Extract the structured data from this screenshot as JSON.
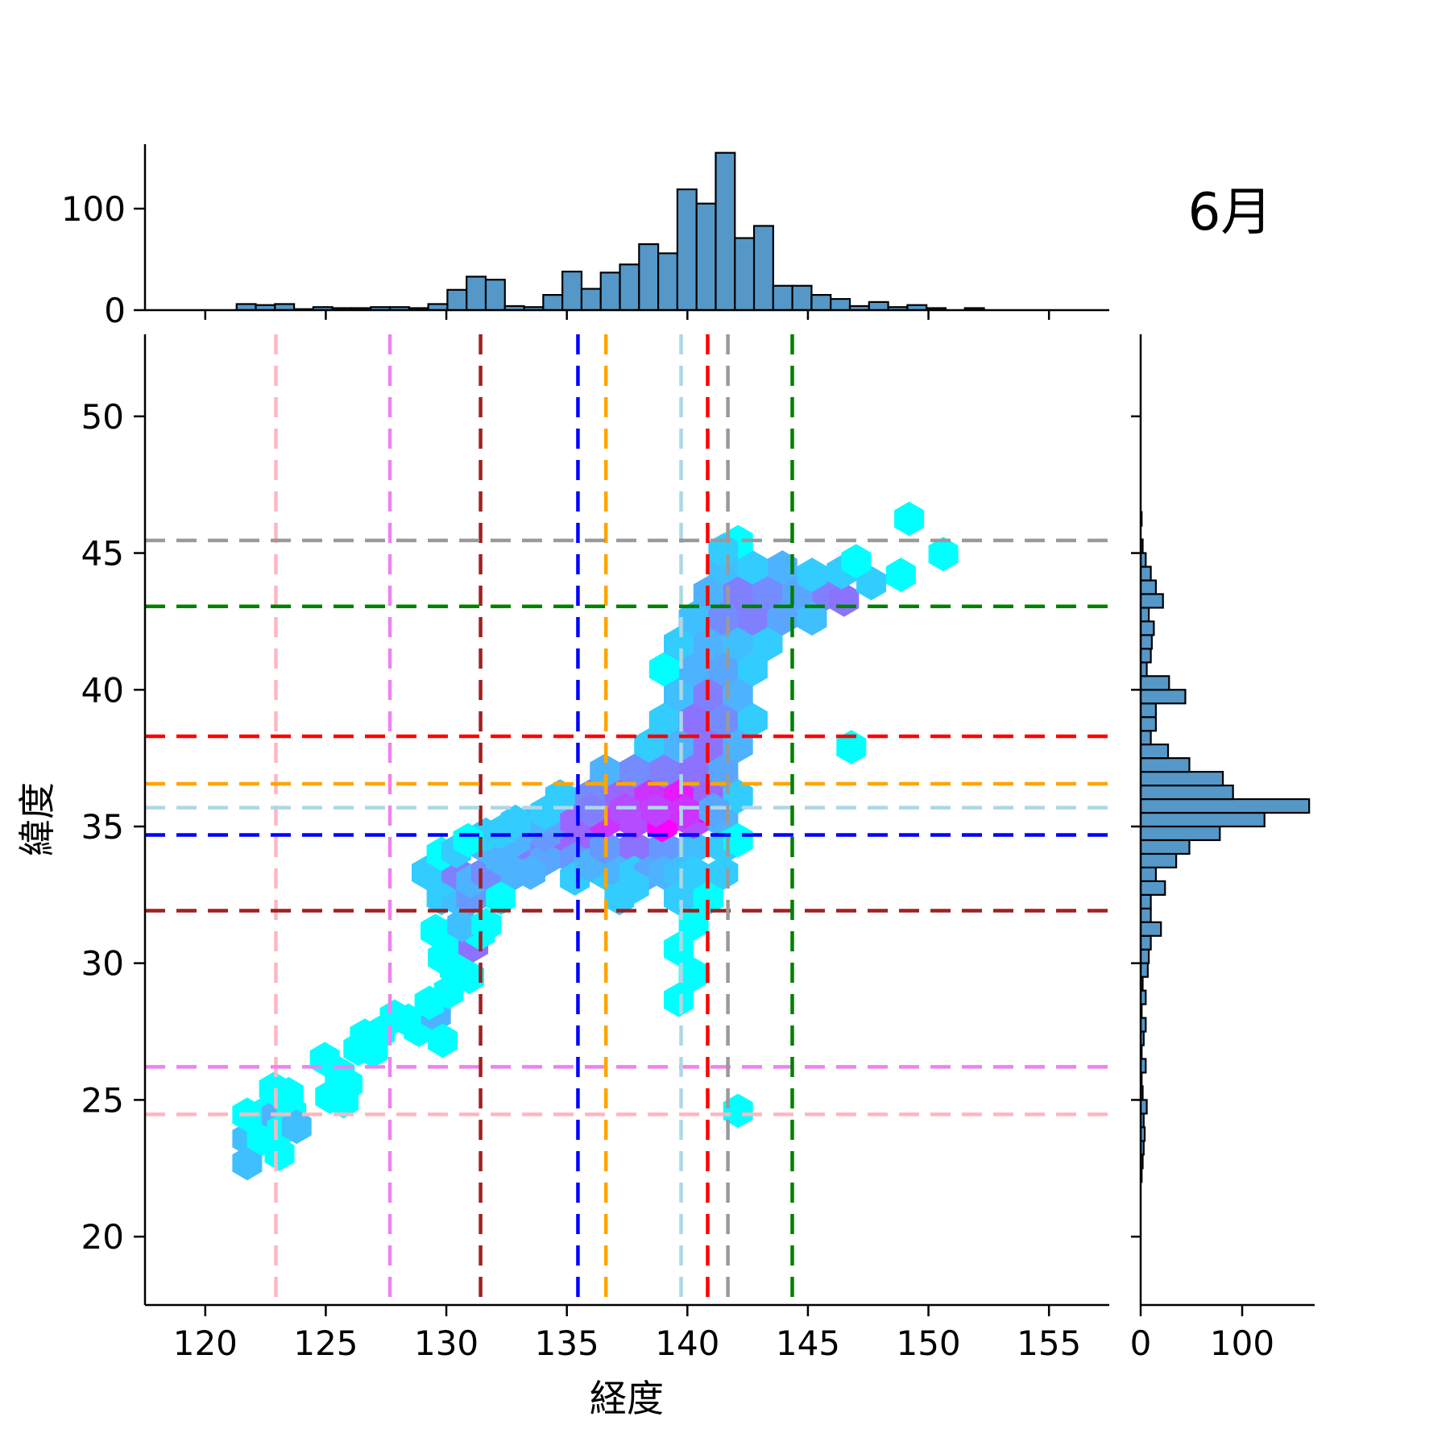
{
  "chart_data": {
    "type": "hexbin_jointplot",
    "title": "6月",
    "xlabel": "経度",
    "ylabel": "緯度",
    "xlim": [
      117.5,
      157.5
    ],
    "ylim": [
      17.5,
      53.0
    ],
    "xticks": [
      120,
      125,
      130,
      135,
      140,
      145,
      150,
      155
    ],
    "yticks": [
      20,
      25,
      30,
      35,
      40,
      45,
      50
    ],
    "grid": false,
    "colormap": "cool",
    "hist_bar_color": "#5598C8",
    "hist_bar_edge": "#000000",
    "top_histogram": {
      "axis": "longitude",
      "bin_start": 121.3,
      "bin_width": 0.795,
      "yticks": [
        0,
        100
      ],
      "ymax": 163,
      "values": [
        6,
        5,
        6,
        1,
        3,
        2,
        2,
        3,
        3,
        2,
        6,
        20,
        33,
        30,
        4,
        3,
        15,
        38,
        21,
        37,
        45,
        65,
        56,
        119,
        105,
        155,
        71,
        83,
        24,
        24,
        15,
        11,
        4,
        8,
        3,
        5,
        2,
        0,
        2
      ]
    },
    "right_histogram": {
      "axis": "latitude",
      "bin_start": 22.0,
      "bin_width": 0.5,
      "xticks": [
        0,
        100
      ],
      "xmax": 170,
      "values": [
        1,
        2,
        3,
        4,
        3,
        6,
        2,
        1,
        5,
        1,
        3,
        5,
        1,
        5,
        2,
        7,
        8,
        10,
        20,
        10,
        10,
        24,
        15,
        35,
        48,
        78,
        122,
        166,
        91,
        81,
        48,
        27,
        10,
        15,
        15,
        44,
        28,
        6,
        10,
        11,
        13,
        8,
        22,
        15,
        10,
        5,
        2,
        0,
        1
      ]
    },
    "reference_lines": [
      {
        "name": "pink",
        "color": "#FFB6C1",
        "lon": 122.93,
        "lat": 24.47
      },
      {
        "name": "violet",
        "color": "#EE82EE",
        "lon": 127.66,
        "lat": 26.21
      },
      {
        "name": "darkred",
        "color": "#A02020",
        "lon": 131.42,
        "lat": 31.92
      },
      {
        "name": "blue",
        "color": "#0000FF",
        "lon": 135.46,
        "lat": 34.69
      },
      {
        "name": "orange",
        "color": "#FFA500",
        "lon": 136.62,
        "lat": 36.56
      },
      {
        "name": "lightblue",
        "color": "#ADD8E6",
        "lon": 139.74,
        "lat": 35.69
      },
      {
        "name": "red",
        "color": "#FF0000",
        "lon": 140.84,
        "lat": 38.3
      },
      {
        "name": "gray",
        "color": "#9A9A9A",
        "lon": 141.68,
        "lat": 45.46
      },
      {
        "name": "green",
        "color": "#008000",
        "lon": 144.35,
        "lat": 43.05
      }
    ],
    "hex_points": [
      [
        121.74,
        22.69,
        0.25
      ],
      [
        121.74,
        23.58,
        0.25
      ],
      [
        122.35,
        23.58,
        0
      ],
      [
        123.08,
        23.03,
        0
      ],
      [
        121.74,
        24.46,
        0
      ],
      [
        122.35,
        24.46,
        0
      ],
      [
        122.96,
        24.43,
        0.3
      ],
      [
        123.57,
        24.55,
        0
      ],
      [
        123.18,
        23.91,
        0
      ],
      [
        123.79,
        24.02,
        0.25
      ],
      [
        122.85,
        25.4,
        0
      ],
      [
        123.46,
        25.21,
        0
      ],
      [
        124.96,
        26.49,
        0
      ],
      [
        125.58,
        25.96,
        0
      ],
      [
        125.9,
        25.58,
        0
      ],
      [
        125.18,
        25.12,
        0
      ],
      [
        125.74,
        24.95,
        0
      ],
      [
        126.35,
        26.87,
        0
      ],
      [
        126.96,
        26.8,
        0
      ],
      [
        127.25,
        27.46,
        0
      ],
      [
        126.62,
        27.35,
        0
      ],
      [
        127.86,
        28.05,
        0
      ],
      [
        128.43,
        27.9,
        0
      ],
      [
        128.86,
        27.56,
        0
      ],
      [
        129.57,
        28.11,
        0.3
      ],
      [
        129.3,
        28.55,
        0
      ],
      [
        129.85,
        27.17,
        0
      ],
      [
        130.1,
        28.95,
        0
      ],
      [
        129.55,
        31.18,
        0
      ],
      [
        130.05,
        31.0,
        0
      ],
      [
        130.55,
        30.7,
        0
      ],
      [
        129.85,
        30.2,
        0
      ],
      [
        130.35,
        29.8,
        0
      ],
      [
        130.95,
        29.5,
        0
      ],
      [
        131.12,
        30.66,
        0.55
      ],
      [
        131.4,
        31.1,
        0
      ],
      [
        130.66,
        31.4,
        0.25
      ],
      [
        131.66,
        31.4,
        0
      ],
      [
        129.8,
        32.38,
        0.2
      ],
      [
        130.41,
        32.38,
        0.25
      ],
      [
        131.03,
        32.38,
        0.4
      ],
      [
        132.26,
        32.38,
        0
      ],
      [
        129.8,
        33.0,
        0.2
      ],
      [
        130.41,
        33.31,
        0.5
      ],
      [
        131.03,
        33.0,
        0.3
      ],
      [
        131.64,
        33.31,
        0.45
      ],
      [
        129.18,
        33.31,
        0.2
      ],
      [
        129.8,
        34.0,
        0
      ],
      [
        132.87,
        33.31,
        0.3
      ],
      [
        132.26,
        33.8,
        0.3
      ],
      [
        130.41,
        34.1,
        0.2
      ],
      [
        131.64,
        34.24,
        0.3
      ],
      [
        133.49,
        34.24,
        0.5
      ],
      [
        134.72,
        34.24,
        0.6
      ],
      [
        134.1,
        33.8,
        0.35
      ],
      [
        133.49,
        33.31,
        0.3
      ],
      [
        134.1,
        34.7,
        0.4
      ],
      [
        132.87,
        34.5,
        0.3
      ],
      [
        135.95,
        34.24,
        0.6
      ],
      [
        135.33,
        33.8,
        0.4
      ],
      [
        135.33,
        33.1,
        0.2
      ],
      [
        136.56,
        33.31,
        0.2
      ],
      [
        135.95,
        33.6,
        0.3
      ],
      [
        132.26,
        34.8,
        0.2
      ],
      [
        133.49,
        35.1,
        0.3
      ],
      [
        134.72,
        35.17,
        0.35
      ],
      [
        135.95,
        35.17,
        0.6
      ],
      [
        134.1,
        35.5,
        0.2
      ],
      [
        132.87,
        35.17,
        0.2
      ],
      [
        131.64,
        34.7,
        0.2
      ],
      [
        130.9,
        34.5,
        0
      ],
      [
        136.57,
        34.24,
        0.4
      ],
      [
        137.8,
        34.24,
        0.55
      ],
      [
        139.03,
        34.24,
        0.4
      ],
      [
        140.26,
        34.24,
        0.25
      ],
      [
        135.34,
        35.17,
        0.6
      ],
      [
        136.57,
        35.17,
        0.8
      ],
      [
        137.8,
        35.17,
        0.7
      ],
      [
        139.03,
        35.17,
        0.85
      ],
      [
        140.26,
        35.17,
        0.7
      ],
      [
        141.49,
        35.17,
        0.3
      ],
      [
        138.95,
        35.05,
        1.0
      ],
      [
        140.6,
        35.75,
        1.0
      ],
      [
        134.72,
        36.1,
        0.2
      ],
      [
        135.95,
        36.1,
        0.45
      ],
      [
        137.18,
        36.1,
        0.6
      ],
      [
        138.41,
        36.1,
        0.8
      ],
      [
        139.64,
        36.1,
        0.9
      ],
      [
        140.87,
        36.1,
        0.6
      ],
      [
        142.1,
        36.1,
        0.2
      ],
      [
        136.57,
        37.03,
        0.3
      ],
      [
        137.8,
        37.03,
        0.45
      ],
      [
        139.03,
        37.03,
        0.5
      ],
      [
        140.26,
        37.03,
        0.55
      ],
      [
        141.49,
        37.03,
        0.35
      ],
      [
        136.0,
        35.6,
        0.5
      ],
      [
        137.4,
        35.6,
        0.7
      ],
      [
        138.7,
        35.6,
        0.75
      ],
      [
        139.9,
        35.55,
        0.8
      ],
      [
        141.1,
        35.6,
        0.35
      ],
      [
        137.18,
        33.31,
        0.3
      ],
      [
        137.79,
        33.31,
        0.2
      ],
      [
        138.41,
        33.31,
        0.35
      ],
      [
        137.18,
        32.38,
        0.2
      ],
      [
        137.79,
        32.8,
        0.2
      ],
      [
        139.03,
        33.31,
        0.3
      ],
      [
        139.64,
        33.31,
        0.25
      ],
      [
        139.64,
        32.38,
        0.2
      ],
      [
        140.26,
        33.31,
        0.2
      ],
      [
        140.87,
        32.38,
        0
      ],
      [
        141.49,
        33.31,
        0.2
      ],
      [
        141.49,
        34.24,
        0.2
      ],
      [
        142.1,
        34.5,
        0
      ],
      [
        140.26,
        31.45,
        0
      ],
      [
        139.64,
        30.52,
        0
      ],
      [
        140.26,
        29.59,
        0
      ],
      [
        139.64,
        28.66,
        0
      ],
      [
        142.1,
        24.6,
        0
      ],
      [
        139.64,
        37.96,
        0.3
      ],
      [
        140.87,
        37.96,
        0.55
      ],
      [
        142.1,
        37.96,
        0.3
      ],
      [
        138.41,
        37.96,
        0.2
      ],
      [
        139.03,
        38.89,
        0.2
      ],
      [
        140.26,
        38.89,
        0.55
      ],
      [
        141.49,
        38.89,
        0.45
      ],
      [
        142.71,
        38.89,
        0.2
      ],
      [
        139.64,
        39.82,
        0.25
      ],
      [
        140.87,
        39.82,
        0.5
      ],
      [
        142.1,
        39.82,
        0.3
      ],
      [
        140.26,
        40.75,
        0.3
      ],
      [
        141.49,
        40.75,
        0.35
      ],
      [
        142.71,
        40.75,
        0.2
      ],
      [
        139.03,
        40.75,
        0
      ],
      [
        140.87,
        41.68,
        0.3
      ],
      [
        139.64,
        41.68,
        0.2
      ],
      [
        142.1,
        41.68,
        0.25
      ],
      [
        143.33,
        41.68,
        0.2
      ],
      [
        146.8,
        37.9,
        0
      ],
      [
        140.26,
        42.61,
        0.25
      ],
      [
        141.49,
        42.61,
        0.45
      ],
      [
        142.71,
        42.61,
        0.5
      ],
      [
        143.94,
        42.61,
        0.35
      ],
      [
        145.17,
        42.61,
        0.25
      ],
      [
        140.87,
        43.54,
        0.3
      ],
      [
        142.1,
        43.54,
        0.5
      ],
      [
        143.33,
        43.54,
        0.45
      ],
      [
        144.56,
        43.54,
        0.35
      ],
      [
        145.79,
        43.54,
        0.5
      ],
      [
        146.5,
        43.3,
        0.55
      ],
      [
        141.49,
        44.47,
        0.25
      ],
      [
        142.71,
        44.47,
        0.2
      ],
      [
        143.94,
        44.47,
        0.3
      ],
      [
        145.17,
        44.2,
        0.2
      ],
      [
        148.86,
        44.2,
        0
      ],
      [
        142.1,
        45.4,
        0
      ],
      [
        141.49,
        45.1,
        0.2
      ],
      [
        150.62,
        44.96,
        0
      ],
      [
        149.2,
        46.25,
        0
      ],
      [
        147.63,
        43.9,
        0.2
      ],
      [
        146.4,
        44.3,
        0.2
      ],
      [
        147.0,
        44.7,
        0
      ]
    ]
  }
}
